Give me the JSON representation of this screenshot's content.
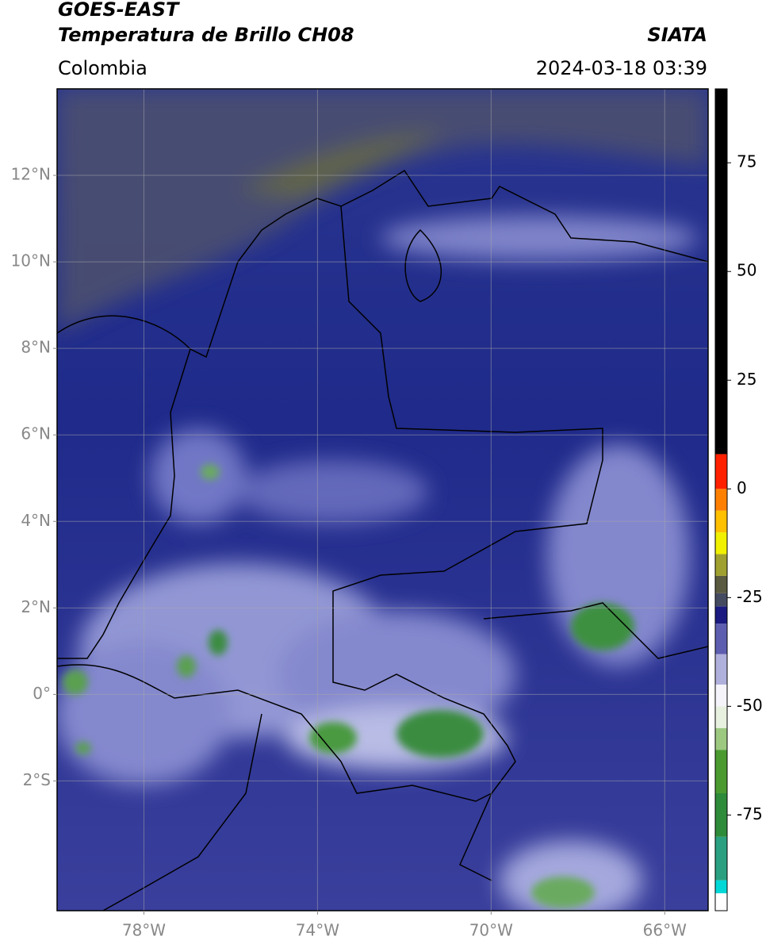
{
  "header": {
    "title": "GOES-EAST",
    "subtitle": "Temperatura de Brillo CH08",
    "source": "SIATA",
    "region": "Colombia",
    "datetime": "2024-03-18 03:39"
  },
  "map": {
    "lonlim": [
      -80,
      -65
    ],
    "latlim": [
      -5,
      14
    ],
    "lat_ticks": [
      {
        "value": 12,
        "label": "12°N"
      },
      {
        "value": 10,
        "label": "10°N"
      },
      {
        "value": 8,
        "label": "8°N"
      },
      {
        "value": 6,
        "label": "6°N"
      },
      {
        "value": 4,
        "label": "4°N"
      },
      {
        "value": 2,
        "label": "2°N"
      },
      {
        "value": 0,
        "label": "0°"
      },
      {
        "value": -2,
        "label": "2°S"
      }
    ],
    "lon_ticks": [
      {
        "value": -78,
        "label": "78°W"
      },
      {
        "value": -74,
        "label": "74°W"
      },
      {
        "value": -70,
        "label": "70°W"
      },
      {
        "value": -66,
        "label": "66°W"
      }
    ],
    "grid": true
  },
  "colorbar": {
    "lim": [
      -97,
      92
    ],
    "ticks": [
      75,
      50,
      25,
      0,
      -25,
      -50,
      -75
    ],
    "segments": [
      {
        "from": -97,
        "to": -93,
        "color": "#ffffff"
      },
      {
        "from": -93,
        "to": -90,
        "color": "#00d8d8"
      },
      {
        "from": -90,
        "to": -80,
        "color": "#2aa080"
      },
      {
        "from": -80,
        "to": -70,
        "color": "#2e8b3a"
      },
      {
        "from": -70,
        "to": -60,
        "color": "#4a9a30"
      },
      {
        "from": -60,
        "to": -55,
        "color": "#9cc880"
      },
      {
        "from": -55,
        "to": -50,
        "color": "#e8f0e0"
      },
      {
        "from": -50,
        "to": -45,
        "color": "#f4f4fa"
      },
      {
        "from": -45,
        "to": -38,
        "color": "#b0b0dc"
      },
      {
        "from": -38,
        "to": -31,
        "color": "#5e5eb0"
      },
      {
        "from": -31,
        "to": -27,
        "color": "#1a1a80"
      },
      {
        "from": -27,
        "to": -24,
        "color": "#444a60"
      },
      {
        "from": -24,
        "to": -20,
        "color": "#5a5a40"
      },
      {
        "from": -20,
        "to": -15,
        "color": "#a0a030"
      },
      {
        "from": -15,
        "to": -10,
        "color": "#f0f000"
      },
      {
        "from": -10,
        "to": -5,
        "color": "#ffc000"
      },
      {
        "from": -5,
        "to": 0,
        "color": "#ff8000"
      },
      {
        "from": 0,
        "to": 8,
        "color": "#ff2000"
      },
      {
        "from": 8,
        "to": 92,
        "color": "#000000"
      }
    ]
  }
}
